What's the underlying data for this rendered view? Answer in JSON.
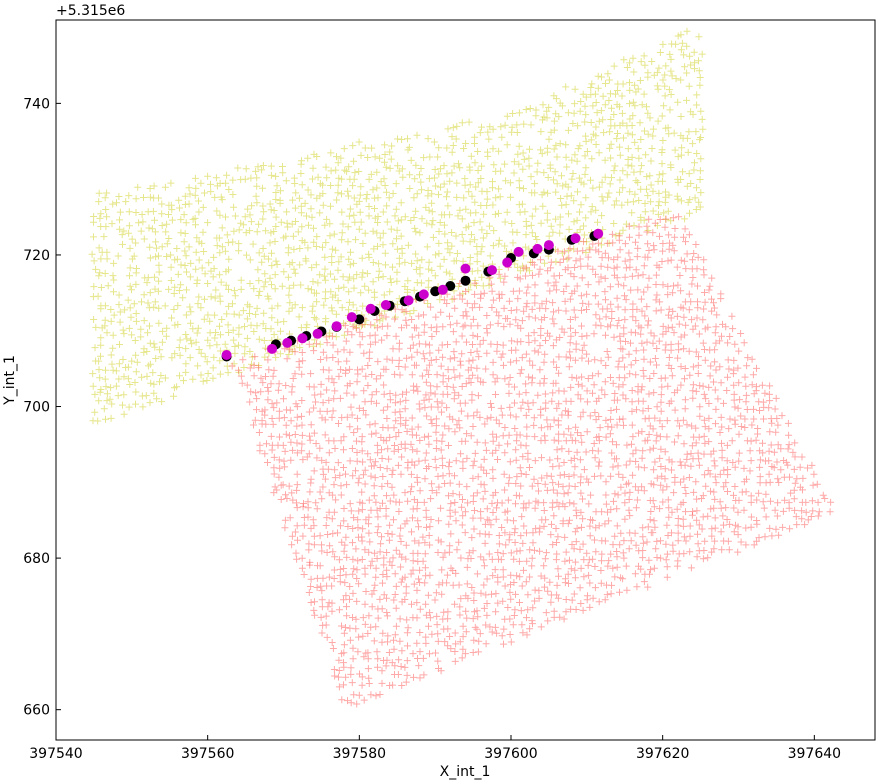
{
  "chart_data": {
    "type": "scatter",
    "title": "",
    "xlabel": "X_int_1",
    "ylabel": "Y_int_1",
    "y_offset_label": "+5.315e6",
    "xlim": [
      397540,
      397648
    ],
    "ylim": [
      656,
      751
    ],
    "x_ticks": [
      397540,
      397560,
      397580,
      397600,
      397620,
      397640
    ],
    "x_tick_labels": [
      "397540",
      "397560",
      "397580",
      "397600",
      "397620",
      "397640"
    ],
    "y_ticks": [
      660,
      680,
      700,
      720,
      740
    ],
    "y_tick_labels": [
      "660",
      "680",
      "700",
      "720",
      "740"
    ],
    "grid": false,
    "legend": "none",
    "series": [
      {
        "marker": "plus",
        "color": "#c8c800",
        "region": {
          "x_range": [
            397545,
            397625
          ],
          "y_lower_at_xmin": 698,
          "y_lower_slope": 0.35,
          "y_upper_at_xmin": 728,
          "y_upper_slope": 0.19,
          "x_sample_step": 0.8,
          "y_sample_step": 1.1
        }
      },
      {
        "marker": "plus",
        "color": "#ff4040",
        "region": {
          "corners": [
            [
              397563,
              706
            ],
            [
              397622,
              726
            ],
            [
              397643,
              686
            ],
            [
              397578,
              660
            ]
          ],
          "x_sample_step": 0.8,
          "y_sample_step": 1.1
        }
      },
      {
        "marker": "circle",
        "color": "#000000",
        "x": [
          397562.5,
          397569,
          397571,
          397573,
          397575,
          397577,
          397580,
          397582,
          397584,
          397586,
          397588,
          397590,
          397592,
          397594,
          397597,
          397600,
          397603,
          397605,
          397608,
          397611
        ],
        "y": [
          706.6,
          708.2,
          708.7,
          709.3,
          709.9,
          710.5,
          711.5,
          712.6,
          713.3,
          713.9,
          714.5,
          715.2,
          715.9,
          716.6,
          717.8,
          719.6,
          720.2,
          720.7,
          722.0,
          722.5
        ]
      },
      {
        "marker": "circle",
        "color": "#cc00cc",
        "x": [
          397562.5,
          397568.5,
          397570.5,
          397572.5,
          397574.5,
          397577,
          397579,
          397581.5,
          397583.5,
          397586.5,
          397588.5,
          397591,
          397594,
          397597.5,
          397599.5,
          397601,
          397603.5,
          397605,
          397608.5,
          397611.5
        ],
        "y": [
          706.8,
          707.6,
          708.4,
          709.0,
          709.6,
          710.6,
          711.8,
          712.9,
          713.4,
          714.0,
          714.8,
          715.4,
          718.2,
          718.0,
          719.0,
          720.4,
          720.8,
          721.3,
          722.2,
          722.8
        ]
      }
    ]
  }
}
